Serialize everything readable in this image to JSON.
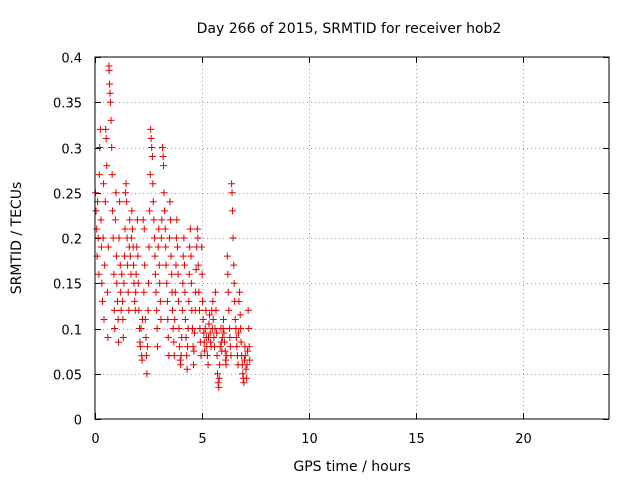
{
  "chart_data": {
    "type": "scatter",
    "title": "Day 266 of 2015, SRMTID for receiver hob2",
    "xlabel": "GPS time / hours",
    "ylabel": "SRMTID / TECUs",
    "xlim": [
      0,
      24
    ],
    "ylim": [
      0,
      0.4
    ],
    "grid": true,
    "marker": "+",
    "color": "#e00000",
    "xticks": [
      0,
      5,
      10,
      15,
      20
    ],
    "xtick_labels": [
      "0",
      "5",
      "10",
      "15",
      "20"
    ],
    "yticks": [
      0,
      0.05,
      0.1,
      0.15,
      0.2,
      0.25,
      0.3,
      0.35,
      0.4
    ],
    "ytick_labels": [
      "0",
      "0.05",
      "0.1",
      "0.15",
      "0.2",
      "0.25",
      "0.3",
      "0.35",
      "0.4"
    ],
    "series": [
      {
        "name": "hob2",
        "points": [
          [
            0.02,
            0.25
          ],
          [
            0.05,
            0.23
          ],
          [
            0.08,
            0.21
          ],
          [
            0.1,
            0.18
          ],
          [
            0.12,
            0.24
          ],
          [
            0.15,
            0.2
          ],
          [
            0.18,
            0.16
          ],
          [
            0.2,
            0.27
          ],
          [
            0.22,
            0.3
          ],
          [
            0.25,
            0.32
          ],
          [
            0.28,
            0.22
          ],
          [
            0.3,
            0.19
          ],
          [
            0.32,
            0.15
          ],
          [
            0.35,
            0.13
          ],
          [
            0.38,
            0.2
          ],
          [
            0.4,
            0.26
          ],
          [
            0.42,
            0.11
          ],
          [
            0.45,
            0.17
          ],
          [
            0.48,
            0.24
          ],
          [
            0.5,
            0.32
          ],
          [
            0.52,
            0.31
          ],
          [
            0.55,
            0.28
          ],
          [
            0.58,
            0.14
          ],
          [
            0.6,
            0.09
          ],
          [
            0.62,
            0.19
          ],
          [
            0.65,
            0.39
          ],
          [
            0.66,
            0.385
          ],
          [
            0.68,
            0.37
          ],
          [
            0.7,
            0.36
          ],
          [
            0.72,
            0.35
          ],
          [
            0.75,
            0.33
          ],
          [
            0.78,
            0.3
          ],
          [
            0.8,
            0.27
          ],
          [
            0.82,
            0.23
          ],
          [
            0.85,
            0.2
          ],
          [
            0.88,
            0.16
          ],
          [
            0.9,
            0.12
          ],
          [
            0.92,
            0.1
          ],
          [
            0.95,
            0.22
          ],
          [
            0.98,
            0.25
          ],
          [
            1.0,
            0.18
          ],
          [
            1.02,
            0.15
          ],
          [
            1.05,
            0.13
          ],
          [
            1.08,
            0.11
          ],
          [
            1.1,
            0.085
          ],
          [
            1.12,
            0.2
          ],
          [
            1.15,
            0.24
          ],
          [
            1.18,
            0.17
          ],
          [
            1.2,
            0.14
          ],
          [
            1.22,
            0.12
          ],
          [
            1.25,
            0.16
          ],
          [
            1.28,
            0.13
          ],
          [
            1.3,
            0.11
          ],
          [
            1.32,
            0.09
          ],
          [
            1.35,
            0.15
          ],
          [
            1.38,
            0.18
          ],
          [
            1.4,
            0.21
          ],
          [
            1.42,
            0.25
          ],
          [
            1.45,
            0.26
          ],
          [
            1.48,
            0.24
          ],
          [
            1.5,
            0.2
          ],
          [
            1.52,
            0.17
          ],
          [
            1.55,
            0.14
          ],
          [
            1.58,
            0.12
          ],
          [
            1.6,
            0.19
          ],
          [
            1.62,
            0.22
          ],
          [
            1.65,
            0.18
          ],
          [
            1.68,
            0.16
          ],
          [
            1.7,
            0.2
          ],
          [
            1.72,
            0.23
          ],
          [
            1.75,
            0.21
          ],
          [
            1.78,
            0.19
          ],
          [
            1.8,
            0.17
          ],
          [
            1.82,
            0.15
          ],
          [
            1.85,
            0.13
          ],
          [
            1.88,
            0.12
          ],
          [
            1.9,
            0.14
          ],
          [
            1.92,
            0.16
          ],
          [
            1.95,
            0.19
          ],
          [
            1.98,
            0.22
          ],
          [
            2.0,
            0.18
          ],
          [
            2.02,
            0.15
          ],
          [
            2.05,
            0.12
          ],
          [
            2.08,
            0.1
          ],
          [
            2.1,
            0.085
          ],
          [
            2.12,
            0.08
          ],
          [
            2.15,
            0.1
          ],
          [
            2.18,
            0.07
          ],
          [
            2.2,
            0.065
          ],
          [
            2.22,
            0.11
          ],
          [
            2.25,
            0.22
          ],
          [
            2.28,
            0.14
          ],
          [
            2.3,
            0.21
          ],
          [
            2.32,
            0.17
          ],
          [
            2.35,
            0.11
          ],
          [
            2.38,
            0.09
          ],
          [
            2.4,
            0.07
          ],
          [
            2.42,
            0.05
          ],
          [
            2.45,
            0.08
          ],
          [
            2.48,
            0.12
          ],
          [
            2.5,
            0.15
          ],
          [
            2.52,
            0.19
          ],
          [
            2.55,
            0.23
          ],
          [
            2.58,
            0.27
          ],
          [
            2.6,
            0.32
          ],
          [
            2.62,
            0.31
          ],
          [
            2.65,
            0.3
          ],
          [
            2.68,
            0.29
          ],
          [
            2.7,
            0.26
          ],
          [
            2.72,
            0.24
          ],
          [
            2.75,
            0.22
          ],
          [
            2.78,
            0.2
          ],
          [
            2.8,
            0.18
          ],
          [
            2.82,
            0.16
          ],
          [
            2.85,
            0.14
          ],
          [
            2.88,
            0.12
          ],
          [
            2.9,
            0.1
          ],
          [
            2.92,
            0.08
          ],
          [
            2.95,
            0.19
          ],
          [
            2.98,
            0.21
          ],
          [
            3.0,
            0.17
          ],
          [
            3.02,
            0.15
          ],
          [
            3.05,
            0.13
          ],
          [
            3.08,
            0.11
          ],
          [
            3.1,
            0.2
          ],
          [
            3.12,
            0.22
          ],
          [
            3.15,
            0.3
          ],
          [
            3.18,
            0.29
          ],
          [
            3.2,
            0.28
          ],
          [
            3.22,
            0.25
          ],
          [
            3.25,
            0.23
          ],
          [
            3.28,
            0.21
          ],
          [
            3.3,
            0.19
          ],
          [
            3.32,
            0.17
          ],
          [
            3.35,
            0.15
          ],
          [
            3.38,
            0.13
          ],
          [
            3.4,
            0.11
          ],
          [
            3.42,
            0.09
          ],
          [
            3.45,
            0.07
          ],
          [
            3.48,
            0.2
          ],
          [
            3.5,
            0.24
          ],
          [
            3.52,
            0.22
          ],
          [
            3.55,
            0.18
          ],
          [
            3.58,
            0.16
          ],
          [
            3.6,
            0.14
          ],
          [
            3.62,
            0.12
          ],
          [
            3.65,
            0.1
          ],
          [
            3.68,
            0.085
          ],
          [
            3.7,
            0.07
          ],
          [
            3.72,
            0.11
          ],
          [
            3.75,
            0.14
          ],
          [
            3.78,
            0.17
          ],
          [
            3.8,
            0.2
          ],
          [
            3.82,
            0.22
          ],
          [
            3.85,
            0.19
          ],
          [
            3.88,
            0.16
          ],
          [
            3.9,
            0.13
          ],
          [
            3.92,
            0.1
          ],
          [
            3.95,
            0.08
          ],
          [
            3.98,
            0.065
          ],
          [
            4.0,
            0.06
          ],
          [
            4.02,
            0.07
          ],
          [
            4.05,
            0.09
          ],
          [
            4.08,
            0.12
          ],
          [
            4.1,
            0.15
          ],
          [
            4.12,
            0.18
          ],
          [
            4.15,
            0.2
          ],
          [
            4.18,
            0.17
          ],
          [
            4.2,
            0.14
          ],
          [
            4.22,
            0.11
          ],
          [
            4.25,
            0.09
          ],
          [
            4.28,
            0.07
          ],
          [
            4.3,
            0.055
          ],
          [
            4.32,
            0.08
          ],
          [
            4.35,
            0.1
          ],
          [
            4.38,
            0.13
          ],
          [
            4.4,
            0.16
          ],
          [
            4.42,
            0.19
          ],
          [
            4.45,
            0.21
          ],
          [
            4.48,
            0.18
          ],
          [
            4.5,
            0.15
          ],
          [
            4.52,
            0.12
          ],
          [
            4.55,
            0.1
          ],
          [
            4.58,
            0.08
          ],
          [
            4.6,
            0.06
          ],
          [
            4.62,
            0.075
          ],
          [
            4.65,
            0.095
          ],
          [
            4.68,
            0.12
          ],
          [
            4.7,
            0.14
          ],
          [
            4.72,
            0.165
          ],
          [
            4.75,
            0.19
          ],
          [
            4.78,
            0.21
          ],
          [
            4.8,
            0.2
          ],
          [
            4.82,
            0.17
          ],
          [
            4.85,
            0.14
          ],
          [
            4.88,
            0.12
          ],
          [
            4.9,
            0.1
          ],
          [
            4.92,
            0.085
          ],
          [
            4.95,
            0.07
          ],
          [
            4.98,
            0.19
          ],
          [
            5.0,
            0.16
          ],
          [
            5.02,
            0.13
          ],
          [
            5.05,
            0.11
          ],
          [
            5.08,
            0.095
          ],
          [
            5.1,
            0.085
          ],
          [
            5.12,
            0.075
          ],
          [
            5.15,
            0.1
          ],
          [
            5.18,
            0.12
          ],
          [
            5.2,
            0.09
          ],
          [
            5.22,
            0.08
          ],
          [
            5.25,
            0.07
          ],
          [
            5.28,
            0.06
          ],
          [
            5.3,
            0.09
          ],
          [
            5.32,
            0.105
          ],
          [
            5.35,
            0.115
          ],
          [
            5.38,
            0.095
          ],
          [
            5.4,
            0.085
          ],
          [
            5.42,
            0.08
          ],
          [
            5.45,
            0.12
          ],
          [
            5.48,
            0.1
          ],
          [
            5.5,
            0.13
          ],
          [
            5.52,
            0.11
          ],
          [
            5.55,
            0.09
          ],
          [
            5.58,
            0.08
          ],
          [
            5.6,
            0.1
          ],
          [
            5.62,
            0.14
          ],
          [
            5.65,
            0.12
          ],
          [
            5.68,
            0.095
          ],
          [
            5.7,
            0.07
          ],
          [
            5.72,
            0.05
          ],
          [
            5.75,
            0.04
          ],
          [
            5.78,
            0.035
          ],
          [
            5.8,
            0.045
          ],
          [
            5.82,
            0.06
          ],
          [
            5.85,
            0.08
          ],
          [
            5.88,
            0.1
          ],
          [
            5.9,
            0.085
          ],
          [
            5.92,
            0.075
          ],
          [
            5.95,
            0.09
          ],
          [
            5.98,
            0.1
          ],
          [
            6.0,
            0.11
          ],
          [
            6.02,
            0.095
          ],
          [
            6.05,
            0.085
          ],
          [
            6.08,
            0.075
          ],
          [
            6.1,
            0.065
          ],
          [
            6.12,
            0.06
          ],
          [
            6.15,
            0.07
          ],
          [
            6.18,
            0.18
          ],
          [
            6.2,
            0.16
          ],
          [
            6.22,
            0.14
          ],
          [
            6.25,
            0.12
          ],
          [
            6.28,
            0.1
          ],
          [
            6.3,
            0.09
          ],
          [
            6.32,
            0.08
          ],
          [
            6.35,
            0.07
          ],
          [
            6.38,
            0.26
          ],
          [
            6.4,
            0.25
          ],
          [
            6.42,
            0.23
          ],
          [
            6.45,
            0.2
          ],
          [
            6.48,
            0.17
          ],
          [
            6.5,
            0.15
          ],
          [
            6.52,
            0.13
          ],
          [
            6.55,
            0.11
          ],
          [
            6.58,
            0.1
          ],
          [
            6.6,
            0.09
          ],
          [
            6.62,
            0.08
          ],
          [
            6.65,
            0.07
          ],
          [
            6.68,
            0.06
          ],
          [
            6.7,
            0.095
          ],
          [
            6.72,
            0.13
          ],
          [
            6.75,
            0.14
          ],
          [
            6.78,
            0.115
          ],
          [
            6.8,
            0.1
          ],
          [
            6.82,
            0.085
          ],
          [
            6.85,
            0.07
          ],
          [
            6.88,
            0.06
          ],
          [
            6.9,
            0.05
          ],
          [
            6.92,
            0.045
          ],
          [
            6.95,
            0.04
          ],
          [
            6.98,
            0.065
          ],
          [
            7.0,
            0.08
          ],
          [
            7.02,
            0.07
          ],
          [
            7.05,
            0.055
          ],
          [
            7.08,
            0.045
          ],
          [
            7.1,
            0.06
          ],
          [
            7.12,
            0.075
          ],
          [
            7.15,
            0.12
          ],
          [
            7.18,
            0.1
          ],
          [
            7.2,
            0.08
          ],
          [
            7.22,
            0.065
          ]
        ]
      }
    ]
  }
}
